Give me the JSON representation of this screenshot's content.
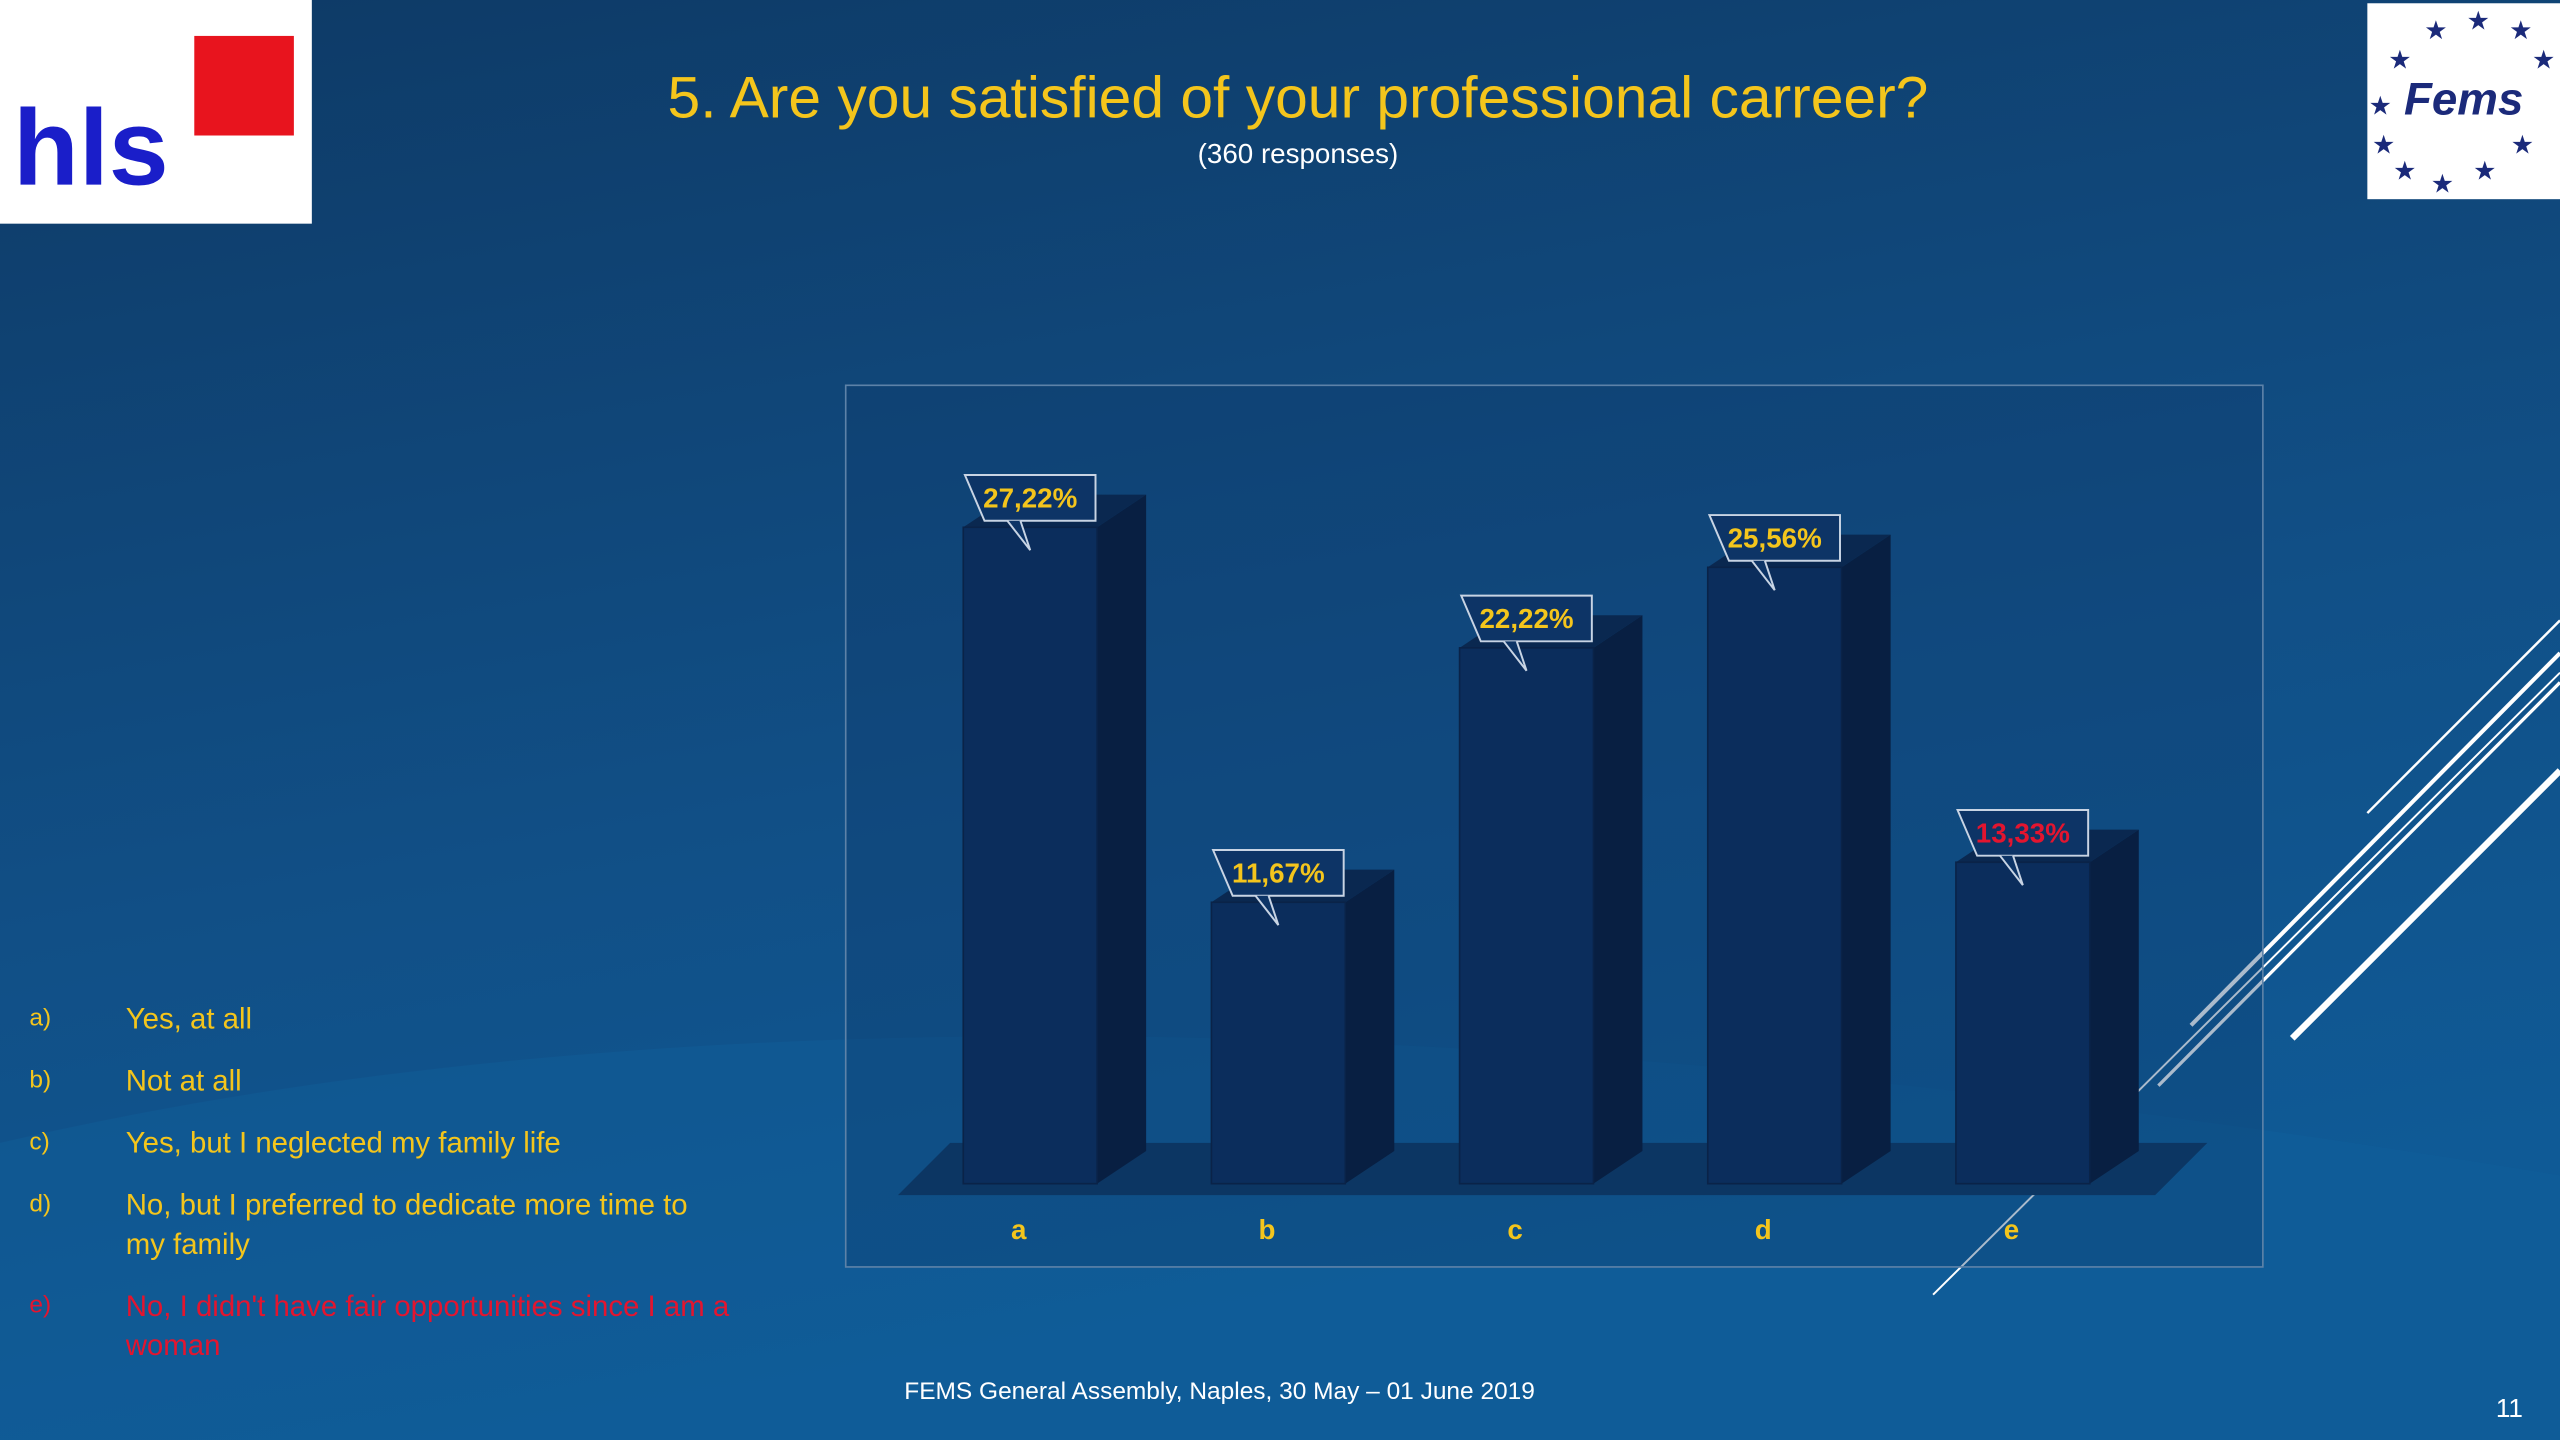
{
  "logos": {
    "left": "hls",
    "right": "Fems"
  },
  "chart_data": {
    "type": "bar",
    "title": "5. Are you satisfied of your professional carreer?",
    "subtitle": "(360 responses)",
    "categories": [
      "a",
      "b",
      "c",
      "d",
      "e"
    ],
    "values": [
      27.22,
      11.67,
      22.22,
      25.56,
      13.33
    ],
    "value_labels": [
      "27,22%",
      "11,67%",
      "22,22%",
      "25,56%",
      "13,33%"
    ],
    "color": "#0b2d5c",
    "label_colors": [
      "#f4c51c",
      "#f4c51c",
      "#f4c51c",
      "#f4c51c",
      "#e3152f"
    ]
  },
  "options": [
    {
      "letter": "a)",
      "text": "Yes, at all",
      "color": "#f4c51c"
    },
    {
      "letter": "b)",
      "text": "Not at all",
      "color": "#f4c51c"
    },
    {
      "letter": "c)",
      "text": "Yes, but I neglected my family life",
      "color": "#f4c51c"
    },
    {
      "letter": "d)",
      "text": "No, but I preferred to dedicate more time to my family",
      "color": "#f4c51c"
    },
    {
      "letter": "e)",
      "text": "No, I didn't have fair opportunities since I am a woman",
      "color": "#e3152f"
    }
  ],
  "footer": "FEMS General Assembly, Naples, 30 May – 01 June 2019",
  "page_number": "11"
}
